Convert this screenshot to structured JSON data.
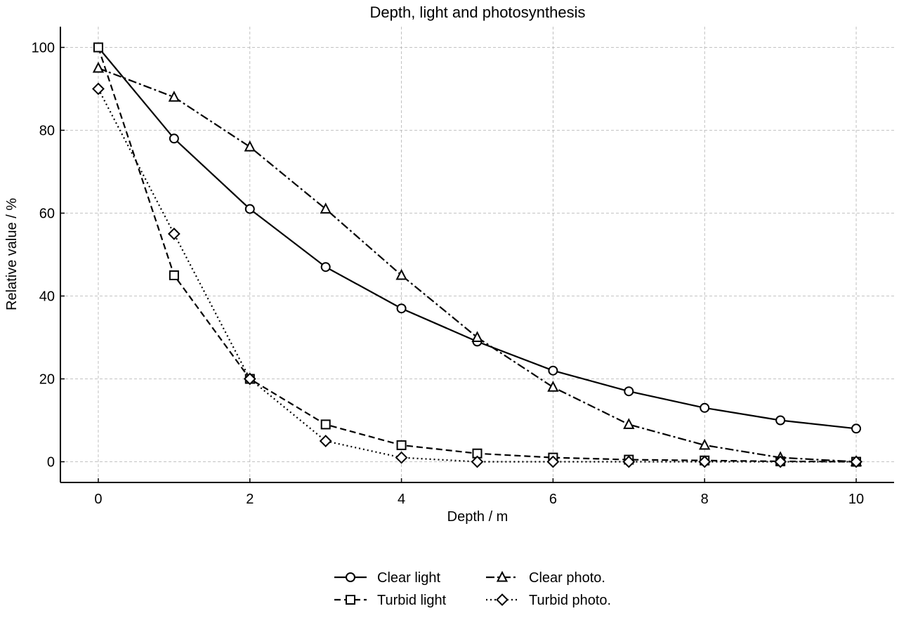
{
  "chart_data": {
    "type": "line",
    "title": "Depth, light and photosynthesis",
    "xlabel": "Depth / m",
    "ylabel": "Relative value / %",
    "xlim": [
      -0.5,
      10.5
    ],
    "ylim": [
      -5,
      105
    ],
    "xticks": [
      0,
      2,
      4,
      6,
      8,
      10
    ],
    "yticks": [
      0,
      20,
      40,
      60,
      80,
      100
    ],
    "grid": true,
    "legend_position": "bottom-center",
    "x": [
      0,
      1,
      2,
      3,
      4,
      5,
      6,
      7,
      8,
      9,
      10
    ],
    "series": [
      {
        "name": "Clear light",
        "marker": "circle",
        "dash": "solid",
        "values": [
          100,
          78,
          61,
          47,
          37,
          29,
          22,
          17,
          13,
          10,
          8
        ]
      },
      {
        "name": "Turbid light",
        "marker": "square",
        "dash": "dashed",
        "values": [
          100,
          45,
          20,
          9,
          4,
          2,
          1,
          0.5,
          0.3,
          0.1,
          0
        ]
      },
      {
        "name": "Clear photo.",
        "marker": "triangle",
        "dash": "dashdot",
        "values": [
          95,
          88,
          76,
          61,
          45,
          30,
          18,
          9,
          4,
          1,
          0
        ]
      },
      {
        "name": "Turbid photo.",
        "marker": "diamond",
        "dash": "dotted",
        "values": [
          90,
          55,
          20,
          5,
          1,
          0,
          0,
          0,
          0,
          0,
          0
        ]
      }
    ]
  }
}
